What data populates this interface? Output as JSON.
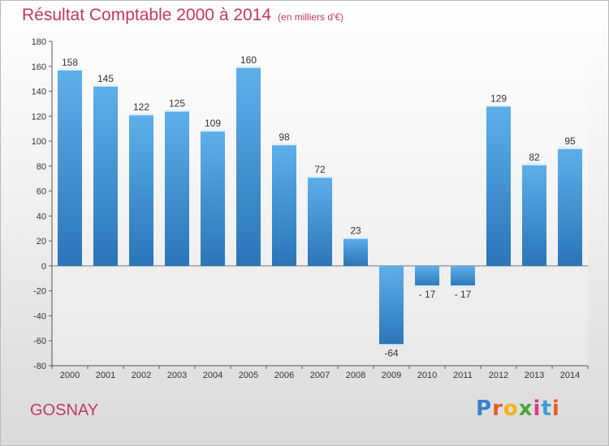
{
  "header": {
    "title": "Résultat Comptable 2000 à 2014",
    "unit": "(en milliers d'€)"
  },
  "footer": {
    "city": "GOSNAY",
    "brand_letters": [
      "P",
      "r",
      "o",
      "x",
      "i",
      "t",
      "i"
    ],
    "brand_colors": [
      "#3a7fd0",
      "#e85a2b",
      "#f2b21c",
      "#4aa63a",
      "#d43a8a",
      "#3a9fd6",
      "#e85a2b"
    ]
  },
  "colors": {
    "bar_light": "#5eb0ea",
    "bar_dark": "#2a75b8",
    "title": "#c03a5c"
  },
  "chart_data": {
    "type": "bar",
    "title": "Résultat Comptable 2000 à 2014",
    "categories": [
      "2000",
      "2001",
      "2002",
      "2003",
      "2004",
      "2005",
      "2006",
      "2007",
      "2008",
      "2009",
      "2010",
      "2011",
      "2012",
      "2013",
      "2014"
    ],
    "values": [
      158,
      145,
      122,
      125,
      109,
      160,
      98,
      72,
      23,
      -64,
      -17,
      -17,
      129,
      82,
      95
    ],
    "value_labels": [
      "158",
      "145",
      "122",
      "125",
      "109",
      "160",
      "98",
      "72",
      "23",
      "-64",
      "- 17",
      "- 17",
      "129",
      "82",
      "95"
    ],
    "y_ticks": [
      "180",
      "160",
      "140",
      "120",
      "100",
      "80",
      "60",
      "40",
      "20",
      "0",
      "-20",
      "-40",
      "-60",
      "-80"
    ],
    "ylim": [
      -80,
      180
    ],
    "grid": false,
    "legend": "none"
  }
}
